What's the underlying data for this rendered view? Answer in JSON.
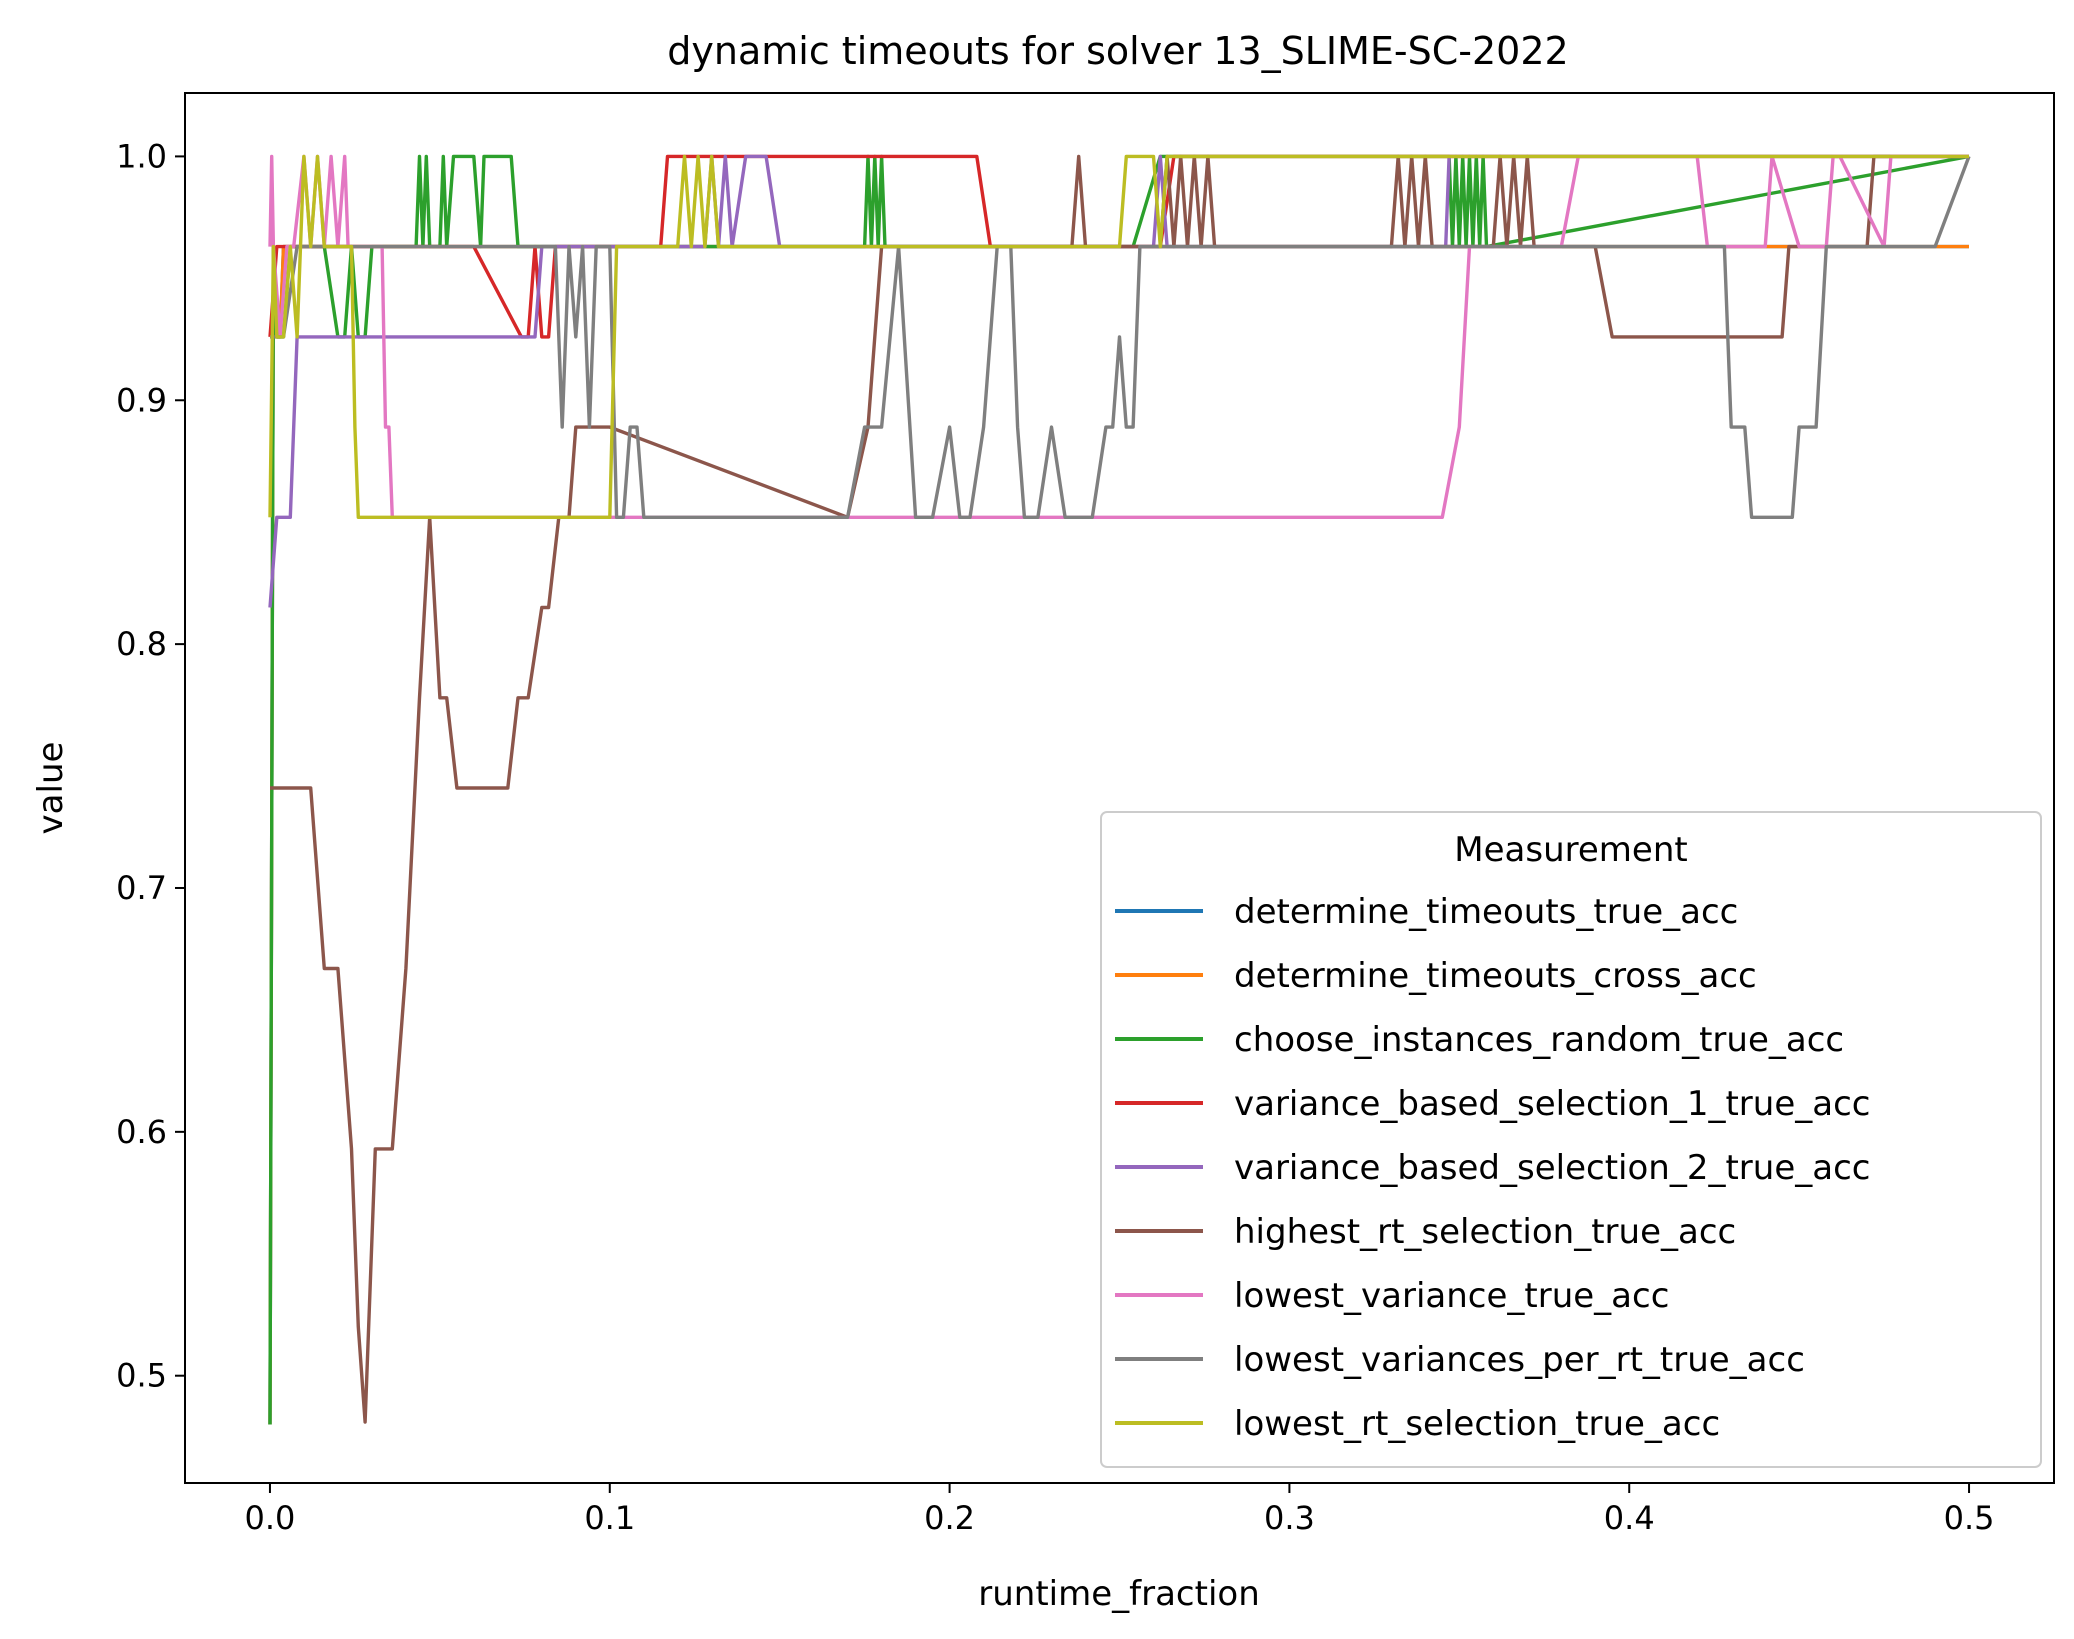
{
  "chart_data": {
    "type": "line",
    "title": "dynamic timeouts for solver 13_SLIME-SC-2022",
    "xlabel": "runtime_fraction",
    "ylabel": "value",
    "xlim": [
      -0.025,
      0.525
    ],
    "ylim": [
      0.456,
      1.026
    ],
    "xticks": [
      0.0,
      0.1,
      0.2,
      0.3,
      0.4,
      0.5
    ],
    "xtick_labels": [
      "0.0",
      "0.1",
      "0.2",
      "0.3",
      "0.4",
      "0.5"
    ],
    "yticks": [
      0.5,
      0.6,
      0.7,
      0.8,
      0.9,
      1.0
    ],
    "ytick_labels": [
      "0.5",
      "0.6",
      "0.7",
      "0.8",
      "0.9",
      "1.0"
    ],
    "grid": false,
    "legend": {
      "title": "Measurement",
      "placement": "lower-right"
    },
    "series": [
      {
        "name": "determine_timeouts_true_acc",
        "color": "#1f77b4",
        "x": [
          0.0,
          0.001,
          0.002,
          0.003,
          0.004,
          0.5
        ],
        "y": [
          0.48,
          0.963,
          0.926,
          0.926,
          0.963,
          0.963
        ]
      },
      {
        "name": "determine_timeouts_cross_acc",
        "color": "#ff7f0e",
        "x": [
          0.0,
          0.001,
          0.002,
          0.003,
          0.004,
          0.5
        ],
        "y": [
          0.48,
          0.963,
          0.926,
          0.926,
          0.963,
          0.963
        ]
      },
      {
        "name": "choose_instances_random_true_acc",
        "color": "#2ca02c",
        "x": [
          0.0,
          0.001,
          0.002,
          0.004,
          0.006,
          0.016,
          0.02,
          0.022,
          0.024,
          0.026,
          0.028,
          0.03,
          0.043,
          0.044,
          0.045,
          0.046,
          0.047,
          0.05,
          0.051,
          0.052,
          0.054,
          0.056,
          0.06,
          0.062,
          0.063,
          0.065,
          0.071,
          0.073,
          0.1,
          0.175,
          0.176,
          0.177,
          0.178,
          0.179,
          0.18,
          0.181,
          0.182,
          0.183,
          0.184,
          0.186,
          0.254,
          0.262,
          0.266,
          0.347,
          0.348,
          0.349,
          0.35,
          0.351,
          0.352,
          0.353,
          0.354,
          0.355,
          0.356,
          0.357,
          0.358,
          0.5
        ],
        "y": [
          0.48,
          0.963,
          0.926,
          0.926,
          0.963,
          0.963,
          0.926,
          0.926,
          0.963,
          0.926,
          0.926,
          0.963,
          0.963,
          1.0,
          0.963,
          1.0,
          0.963,
          0.963,
          1.0,
          0.963,
          1.0,
          1.0,
          1.0,
          0.963,
          1.0,
          1.0,
          1.0,
          0.963,
          0.963,
          0.963,
          1.0,
          0.963,
          1.0,
          0.963,
          1.0,
          0.963,
          0.963,
          0.963,
          0.963,
          0.963,
          0.963,
          1.0,
          1.0,
          1.0,
          0.963,
          1.0,
          0.963,
          1.0,
          0.963,
          1.0,
          0.963,
          1.0,
          0.963,
          1.0,
          0.963,
          1.0
        ]
      },
      {
        "name": "variance_based_selection_1_true_acc",
        "color": "#d62728",
        "x": [
          0.0,
          0.002,
          0.01,
          0.06,
          0.074,
          0.076,
          0.078,
          0.08,
          0.082,
          0.084,
          0.1,
          0.115,
          0.117,
          0.208,
          0.212,
          0.262,
          0.266,
          0.5
        ],
        "y": [
          0.926,
          0.963,
          0.963,
          0.963,
          0.926,
          0.926,
          0.963,
          0.926,
          0.926,
          0.963,
          0.963,
          0.963,
          1.0,
          1.0,
          0.963,
          0.963,
          1.0,
          1.0
        ]
      },
      {
        "name": "variance_based_selection_2_true_acc",
        "color": "#9467bd",
        "x": [
          0.0,
          0.002,
          0.004,
          0.006,
          0.008,
          0.01,
          0.012,
          0.016,
          0.02,
          0.078,
          0.08,
          0.082,
          0.1,
          0.128,
          0.13,
          0.132,
          0.134,
          0.136,
          0.14,
          0.142,
          0.146,
          0.15,
          0.152,
          0.26,
          0.262,
          0.264,
          0.346,
          0.347,
          0.5
        ],
        "y": [
          0.815,
          0.852,
          0.852,
          0.852,
          0.926,
          0.926,
          0.926,
          0.926,
          0.926,
          0.926,
          0.963,
          0.963,
          0.963,
          0.963,
          1.0,
          0.963,
          1.0,
          0.963,
          1.0,
          1.0,
          1.0,
          0.963,
          0.963,
          0.963,
          1.0,
          0.963,
          0.963,
          1.0,
          1.0
        ]
      },
      {
        "name": "highest_rt_selection_true_acc",
        "color": "#8c564b",
        "x": [
          0.0,
          0.002,
          0.006,
          0.012,
          0.016,
          0.02,
          0.022,
          0.024,
          0.026,
          0.028,
          0.031,
          0.034,
          0.036,
          0.04,
          0.044,
          0.047,
          0.05,
          0.052,
          0.055,
          0.06,
          0.066,
          0.07,
          0.073,
          0.076,
          0.08,
          0.082,
          0.085,
          0.088,
          0.09,
          0.1,
          0.17,
          0.176,
          0.18,
          0.182,
          0.184,
          0.186,
          0.236,
          0.238,
          0.24,
          0.262,
          0.264,
          0.266,
          0.268,
          0.27,
          0.272,
          0.274,
          0.276,
          0.278,
          0.28,
          0.33,
          0.332,
          0.334,
          0.336,
          0.338,
          0.34,
          0.342,
          0.344,
          0.36,
          0.362,
          0.364,
          0.366,
          0.368,
          0.37,
          0.372,
          0.39,
          0.395,
          0.42,
          0.445,
          0.447,
          0.47,
          0.472,
          0.5
        ],
        "y": [
          0.741,
          0.741,
          0.741,
          0.741,
          0.667,
          0.667,
          0.63,
          0.593,
          0.52,
          0.481,
          0.593,
          0.593,
          0.593,
          0.667,
          0.778,
          0.852,
          0.778,
          0.778,
          0.741,
          0.741,
          0.741,
          0.741,
          0.778,
          0.778,
          0.815,
          0.815,
          0.852,
          0.852,
          0.889,
          0.889,
          0.852,
          0.889,
          0.963,
          0.963,
          0.963,
          0.963,
          0.963,
          1.0,
          0.963,
          0.963,
          1.0,
          0.963,
          1.0,
          0.963,
          1.0,
          0.963,
          1.0,
          0.963,
          0.963,
          0.963,
          1.0,
          0.963,
          1.0,
          0.963,
          1.0,
          0.963,
          0.963,
          0.963,
          1.0,
          0.963,
          1.0,
          0.963,
          1.0,
          0.963,
          0.963,
          0.926,
          0.926,
          0.926,
          0.963,
          0.963,
          1.0,
          1.0
        ]
      },
      {
        "name": "lowest_variance_true_acc",
        "color": "#e377c2",
        "x": [
          0.0,
          0.0005,
          0.001,
          0.003,
          0.005,
          0.007,
          0.01,
          0.012,
          0.014,
          0.016,
          0.018,
          0.02,
          0.022,
          0.023,
          0.033,
          0.034,
          0.035,
          0.036,
          0.04,
          0.1,
          0.34,
          0.345,
          0.35,
          0.353,
          0.38,
          0.385,
          0.39,
          0.42,
          0.423,
          0.425,
          0.44,
          0.442,
          0.45,
          0.452,
          0.458,
          0.46,
          0.462,
          0.475,
          0.477,
          0.5
        ],
        "y": [
          0.963,
          1.0,
          0.963,
          0.926,
          0.963,
          0.963,
          1.0,
          0.963,
          1.0,
          0.963,
          1.0,
          0.963,
          1.0,
          0.963,
          0.963,
          0.889,
          0.889,
          0.852,
          0.852,
          0.852,
          0.852,
          0.852,
          0.889,
          0.963,
          0.963,
          1.0,
          1.0,
          1.0,
          0.963,
          0.963,
          0.963,
          1.0,
          0.963,
          0.963,
          0.963,
          1.0,
          1.0,
          0.963,
          1.0,
          1.0
        ]
      },
      {
        "name": "lowest_variances_per_rt_true_acc",
        "color": "#7f7f7f",
        "x": [
          0.0,
          0.004,
          0.008,
          0.084,
          0.086,
          0.088,
          0.09,
          0.092,
          0.094,
          0.096,
          0.098,
          0.1,
          0.102,
          0.104,
          0.106,
          0.108,
          0.11,
          0.17,
          0.175,
          0.18,
          0.185,
          0.19,
          0.195,
          0.2,
          0.203,
          0.206,
          0.21,
          0.214,
          0.218,
          0.22,
          0.222,
          0.226,
          0.23,
          0.234,
          0.238,
          0.242,
          0.246,
          0.248,
          0.25,
          0.252,
          0.254,
          0.256,
          0.258,
          0.26,
          0.264,
          0.32,
          0.42,
          0.428,
          0.43,
          0.434,
          0.436,
          0.44,
          0.445,
          0.448,
          0.45,
          0.455,
          0.458,
          0.46,
          0.49,
          0.5
        ],
        "y": [
          0.926,
          0.926,
          0.963,
          0.963,
          0.889,
          0.963,
          0.926,
          0.963,
          0.889,
          0.963,
          0.963,
          0.963,
          0.852,
          0.852,
          0.889,
          0.889,
          0.852,
          0.852,
          0.889,
          0.889,
          0.963,
          0.852,
          0.852,
          0.889,
          0.852,
          0.852,
          0.889,
          0.963,
          0.963,
          0.889,
          0.852,
          0.852,
          0.889,
          0.852,
          0.852,
          0.852,
          0.889,
          0.889,
          0.926,
          0.889,
          0.889,
          0.963,
          0.963,
          0.963,
          0.963,
          0.963,
          0.963,
          0.963,
          0.889,
          0.889,
          0.852,
          0.852,
          0.852,
          0.852,
          0.889,
          0.889,
          0.963,
          0.963,
          0.963,
          1.0
        ]
      },
      {
        "name": "lowest_rt_selection_true_acc",
        "color": "#bcbd22",
        "x": [
          0.0,
          0.001,
          0.002,
          0.004,
          0.006,
          0.008,
          0.01,
          0.012,
          0.014,
          0.016,
          0.022,
          0.024,
          0.025,
          0.026,
          0.03,
          0.1,
          0.102,
          0.104,
          0.12,
          0.122,
          0.124,
          0.126,
          0.128,
          0.13,
          0.132,
          0.135,
          0.25,
          0.252,
          0.254,
          0.256,
          0.258,
          0.26,
          0.262,
          0.264,
          0.268,
          0.5
        ],
        "y": [
          0.852,
          0.963,
          0.926,
          0.926,
          0.963,
          0.926,
          1.0,
          0.963,
          1.0,
          0.963,
          0.963,
          0.963,
          0.889,
          0.852,
          0.852,
          0.852,
          0.963,
          0.963,
          0.963,
          1.0,
          0.963,
          1.0,
          0.963,
          1.0,
          0.963,
          0.963,
          0.963,
          1.0,
          1.0,
          1.0,
          1.0,
          1.0,
          0.963,
          1.0,
          1.0,
          1.0
        ]
      }
    ]
  }
}
